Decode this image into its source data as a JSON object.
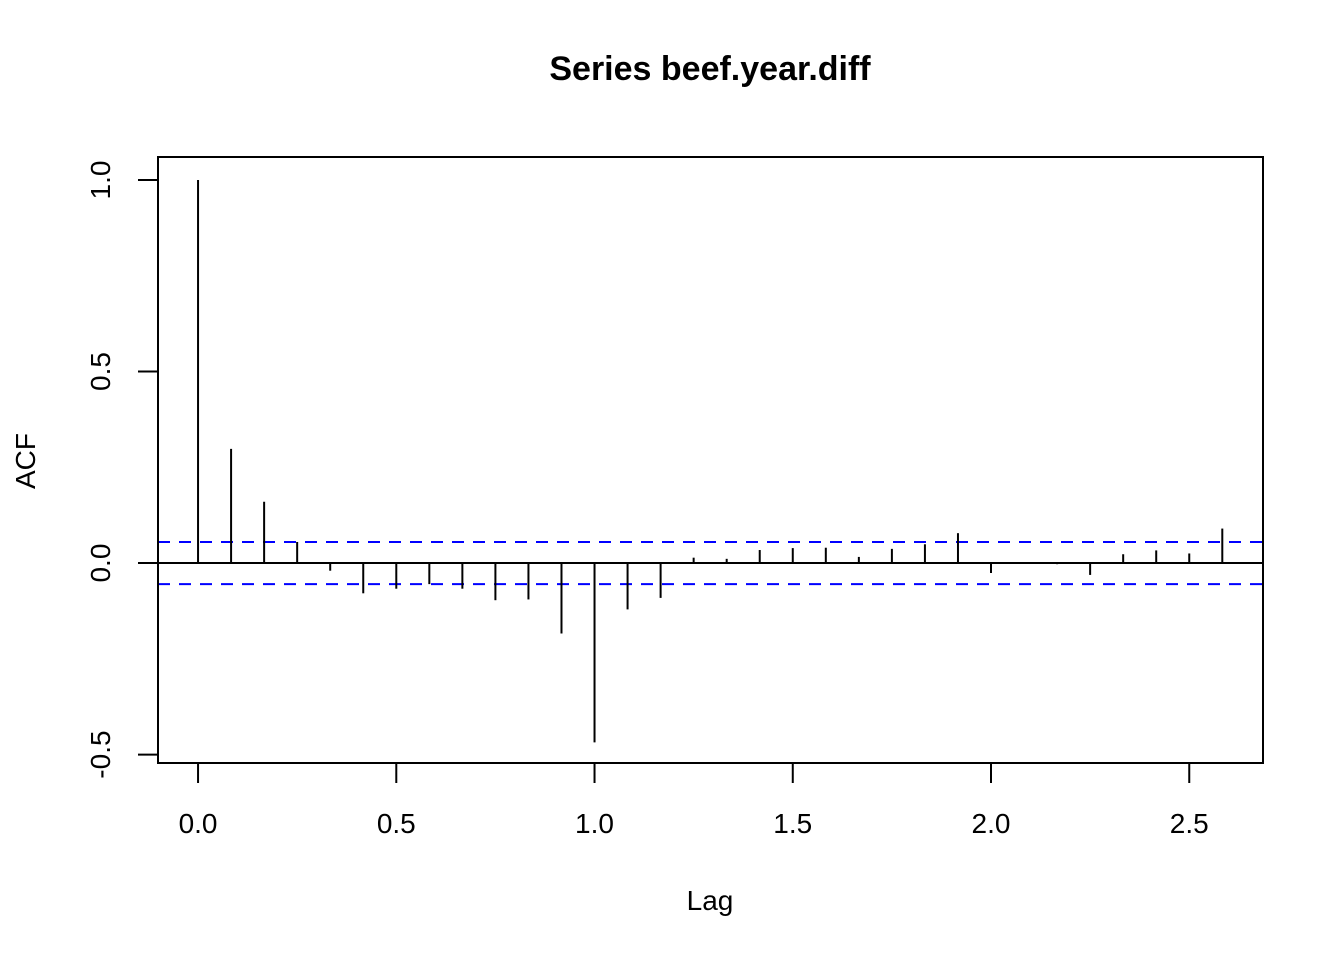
{
  "chart_data": {
    "type": "bar",
    "title": "Series  beef.year.diff",
    "xlabel": "Lag",
    "ylabel": "ACF",
    "xlim": [
      -0.101,
      2.686
    ],
    "ylim": [
      -0.522,
      1.06
    ],
    "xticks": [
      0,
      0.5,
      1,
      1.5,
      2,
      2.5
    ],
    "xtick_labels": [
      "0.0",
      "0.5",
      "1.0",
      "1.5",
      "2.0",
      "2.5"
    ],
    "yticks": [
      -0.5,
      0,
      0.5,
      1
    ],
    "ytick_labels": [
      "-0.5",
      "0.0",
      "0.5",
      "1.0"
    ],
    "lag_step": 0.08333333,
    "values": [
      1.0,
      0.298,
      0.16,
      0.055,
      -0.02,
      -0.079,
      -0.067,
      -0.055,
      -0.067,
      -0.097,
      -0.095,
      -0.184,
      -0.468,
      -0.121,
      -0.091,
      0.014,
      0.011,
      0.034,
      0.039,
      0.04,
      0.016,
      0.037,
      0.049,
      0.078,
      -0.026,
      -0.002,
      -0.003,
      -0.031,
      0.023,
      0.033,
      0.025,
      0.09
    ],
    "confidence_bound": 0.055,
    "confidence_color": "#0000ff",
    "grid": false
  }
}
